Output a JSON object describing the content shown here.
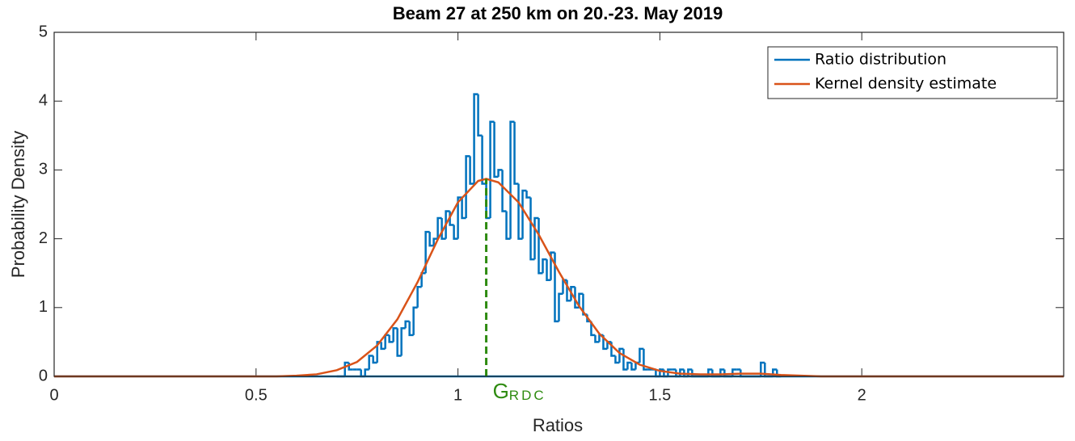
{
  "chart_data": {
    "type": "histogram",
    "title": "Beam 27 at 250 km on 20.-23. May 2019",
    "x_label": "Ratios",
    "y_label": "Probability Density",
    "xlim": [
      0,
      2.5
    ],
    "ylim": [
      0,
      5
    ],
    "xticks": [
      0,
      0.5,
      1,
      1.5,
      2
    ],
    "yticks": [
      0,
      1,
      2,
      3,
      4,
      5
    ],
    "legend": "top-right",
    "histogram": {
      "name": "Ratio distribution",
      "color": "#0072BD",
      "bins": [
        0.7,
        0.71,
        0.72,
        0.73,
        0.74,
        0.75,
        0.76,
        0.77,
        0.78,
        0.79,
        0.8,
        0.81,
        0.82,
        0.83,
        0.84,
        0.85,
        0.86,
        0.87,
        0.88,
        0.89,
        0.9,
        0.91,
        0.92,
        0.93,
        0.94,
        0.95,
        0.96,
        0.97,
        0.98,
        0.99,
        1.0,
        1.01,
        1.02,
        1.03,
        1.04,
        1.05,
        1.06,
        1.07,
        1.08,
        1.09,
        1.1,
        1.11,
        1.12,
        1.13,
        1.14,
        1.15,
        1.16,
        1.17,
        1.18,
        1.19,
        1.2,
        1.21,
        1.22,
        1.23,
        1.24,
        1.25,
        1.26,
        1.27,
        1.28,
        1.29,
        1.3,
        1.31,
        1.32,
        1.33,
        1.34,
        1.35,
        1.36,
        1.37,
        1.38,
        1.39,
        1.4,
        1.41,
        1.42,
        1.43,
        1.44,
        1.45,
        1.46,
        1.47,
        1.48,
        1.49,
        1.5,
        1.51,
        1.52,
        1.53,
        1.54,
        1.55,
        1.56,
        1.57,
        1.58,
        1.59,
        1.6,
        1.61,
        1.62,
        1.63,
        1.64,
        1.65,
        1.66,
        1.67,
        1.68,
        1.69,
        1.7,
        1.71,
        1.72,
        1.73,
        1.74,
        1.75,
        1.76,
        1.77,
        1.78,
        1.79,
        1.8
      ],
      "values": [
        0,
        0,
        0.2,
        0.1,
        0.1,
        0.1,
        0,
        0.1,
        0.3,
        0.2,
        0.5,
        0.4,
        0.6,
        0.5,
        0.7,
        0.3,
        0.7,
        0.8,
        0.6,
        1.0,
        1.3,
        1.5,
        2.1,
        1.9,
        2.0,
        2.3,
        2.0,
        2.4,
        2.2,
        2.0,
        2.6,
        2.3,
        3.2,
        2.8,
        4.1,
        3.5,
        2.8,
        2.3,
        3.7,
        2.9,
        3.0,
        2.4,
        2.0,
        3.7,
        2.8,
        2.0,
        2.7,
        2.6,
        1.7,
        2.3,
        1.5,
        1.7,
        1.4,
        1.8,
        0.8,
        1.2,
        1.4,
        1.1,
        1.3,
        1.0,
        1.2,
        0.9,
        0.8,
        0.6,
        0.5,
        0.6,
        0.4,
        0.5,
        0.3,
        0.2,
        0.4,
        0.1,
        0.2,
        0.1,
        0.2,
        0.4,
        0.1,
        0.1,
        0.1,
        0,
        0.1,
        0,
        0.1,
        0.1,
        0,
        0.1,
        0,
        0.1,
        0,
        0,
        0,
        0,
        0.1,
        0,
        0,
        0.1,
        0,
        0,
        0.1,
        0.1,
        0,
        0,
        0,
        0,
        0,
        0.2,
        0,
        0,
        0.1,
        0
      ]
    },
    "series": [
      {
        "name": "Kernel density estimate",
        "color": "#D95319",
        "x": [
          0,
          0.55,
          0.6,
          0.65,
          0.7,
          0.75,
          0.8,
          0.85,
          0.9,
          0.95,
          1.0,
          1.05,
          1.07,
          1.1,
          1.15,
          1.2,
          1.25,
          1.3,
          1.35,
          1.4,
          1.45,
          1.5,
          1.55,
          1.6,
          1.65,
          1.7,
          1.75,
          1.8,
          1.85,
          1.9,
          2.5
        ],
        "values": [
          0,
          0,
          0.01,
          0.03,
          0.09,
          0.21,
          0.45,
          0.83,
          1.37,
          1.99,
          2.53,
          2.84,
          2.87,
          2.82,
          2.53,
          2.06,
          1.52,
          1.02,
          0.62,
          0.34,
          0.17,
          0.08,
          0.04,
          0.03,
          0.03,
          0.04,
          0.04,
          0.02,
          0.01,
          0,
          0
        ]
      }
    ],
    "annotation": {
      "text": "G",
      "subscript": "RDC",
      "x": 1.07,
      "y": 2.87,
      "color": "#2E8B10"
    }
  }
}
